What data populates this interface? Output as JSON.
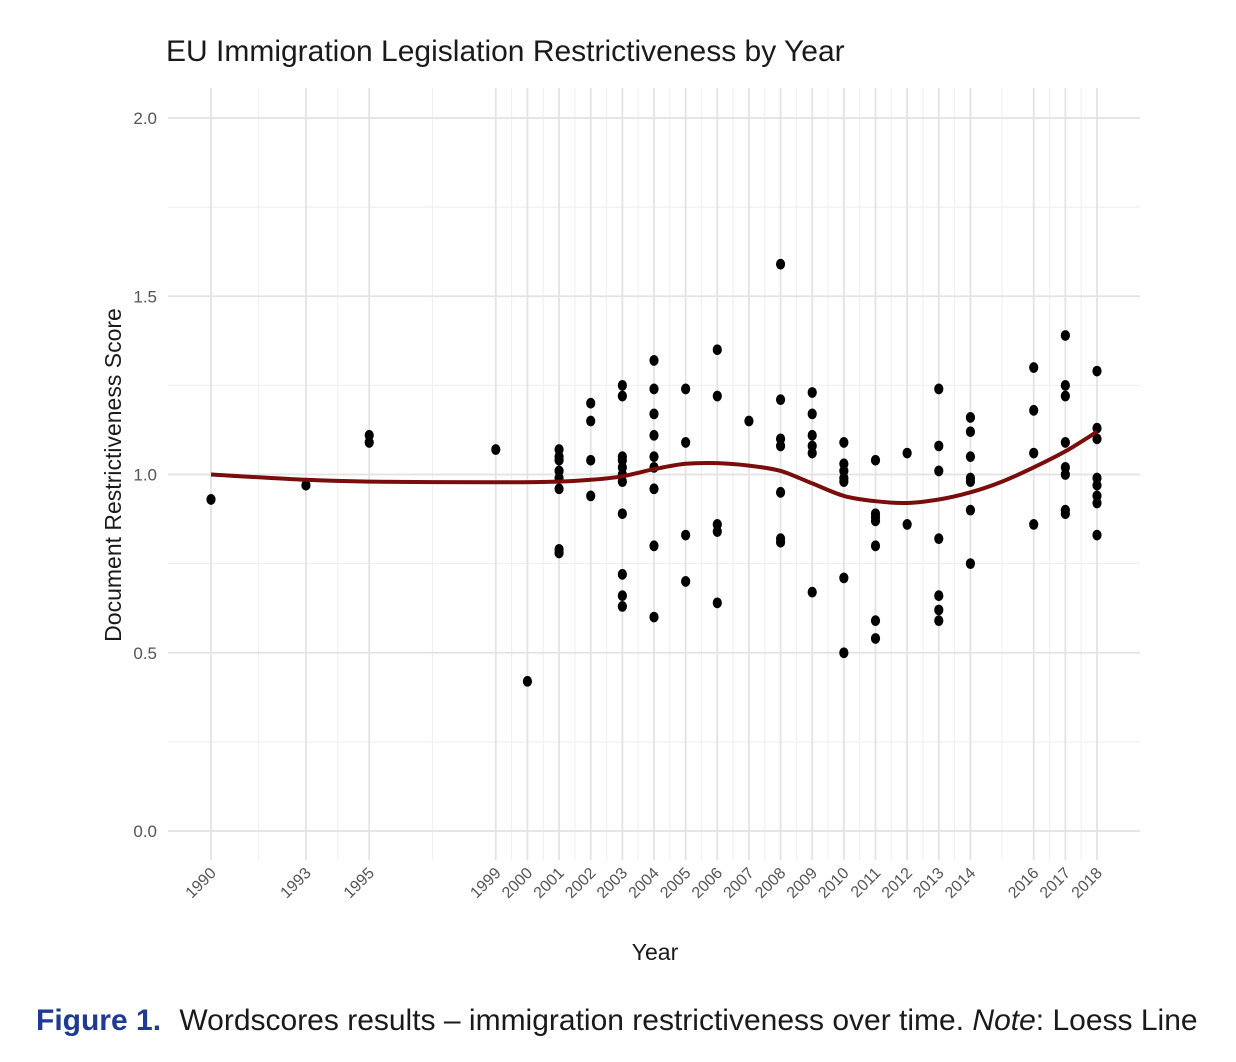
{
  "caption": {
    "figure_label": "Figure 1.",
    "text": "Wordscores results – immigration restrictiveness over time.",
    "note_label": "Note",
    "note_text": ": Loess Line"
  },
  "chart_data": {
    "type": "scatter",
    "title": "EU Immigration Legislation Restrictiveness by Year",
    "xlabel": "Year",
    "ylabel": "Document Restrictiveness Score",
    "xlim": [
      1990,
      2018
    ],
    "ylim": [
      0,
      2
    ],
    "yticks": [
      0.0,
      0.5,
      1.0,
      1.5,
      2.0
    ],
    "ytick_labels": [
      "0.0",
      "0.5",
      "1.0",
      "1.5",
      "2.0"
    ],
    "xticks": [
      1990,
      1993,
      1995,
      1999,
      2000,
      2001,
      2002,
      2003,
      2004,
      2005,
      2006,
      2007,
      2008,
      2009,
      2010,
      2011,
      2012,
      2013,
      2014,
      2016,
      2017,
      2018
    ],
    "xtick_labels": [
      "1990",
      "1993",
      "1995",
      "1999",
      "2000",
      "2001",
      "2002",
      "2003",
      "2004",
      "2005",
      "2006",
      "2007",
      "2008",
      "2009",
      "2010",
      "2011",
      "2012",
      "2013",
      "2014",
      "2016",
      "2017",
      "2018"
    ],
    "grid": true,
    "point_color": "#000000",
    "loess_color": "#7a0c0c",
    "points": [
      [
        1990,
        0.93
      ],
      [
        1993,
        0.97
      ],
      [
        1995,
        1.11
      ],
      [
        1995,
        1.09
      ],
      [
        1999,
        1.07
      ],
      [
        2000,
        0.42
      ],
      [
        2001,
        1.07
      ],
      [
        2001,
        1.05
      ],
      [
        2001,
        1.04
      ],
      [
        2001,
        1.01
      ],
      [
        2001,
        0.99
      ],
      [
        2001,
        0.96
      ],
      [
        2001,
        0.79
      ],
      [
        2001,
        0.78
      ],
      [
        2002,
        1.2
      ],
      [
        2002,
        1.15
      ],
      [
        2002,
        1.04
      ],
      [
        2002,
        0.94
      ],
      [
        2003,
        1.25
      ],
      [
        2003,
        1.22
      ],
      [
        2003,
        1.05
      ],
      [
        2003,
        1.04
      ],
      [
        2003,
        1.02
      ],
      [
        2003,
        1.0
      ],
      [
        2003,
        0.98
      ],
      [
        2003,
        0.89
      ],
      [
        2003,
        0.72
      ],
      [
        2003,
        0.66
      ],
      [
        2003,
        0.63
      ],
      [
        2004,
        1.32
      ],
      [
        2004,
        1.24
      ],
      [
        2004,
        1.17
      ],
      [
        2004,
        1.11
      ],
      [
        2004,
        1.05
      ],
      [
        2004,
        1.02
      ],
      [
        2004,
        0.96
      ],
      [
        2004,
        0.8
      ],
      [
        2004,
        0.6
      ],
      [
        2005,
        1.24
      ],
      [
        2005,
        1.09
      ],
      [
        2005,
        0.83
      ],
      [
        2005,
        0.7
      ],
      [
        2006,
        1.35
      ],
      [
        2006,
        1.22
      ],
      [
        2006,
        0.86
      ],
      [
        2006,
        0.84
      ],
      [
        2006,
        0.64
      ],
      [
        2007,
        1.15
      ],
      [
        2008,
        1.59
      ],
      [
        2008,
        1.21
      ],
      [
        2008,
        1.1
      ],
      [
        2008,
        1.08
      ],
      [
        2008,
        0.95
      ],
      [
        2008,
        0.82
      ],
      [
        2008,
        0.81
      ],
      [
        2009,
        1.23
      ],
      [
        2009,
        1.17
      ],
      [
        2009,
        1.11
      ],
      [
        2009,
        1.08
      ],
      [
        2009,
        1.06
      ],
      [
        2009,
        0.67
      ],
      [
        2010,
        1.09
      ],
      [
        2010,
        1.03
      ],
      [
        2010,
        1.01
      ],
      [
        2010,
        0.99
      ],
      [
        2010,
        0.98
      ],
      [
        2010,
        0.71
      ],
      [
        2010,
        0.5
      ],
      [
        2011,
        1.04
      ],
      [
        2011,
        0.89
      ],
      [
        2011,
        0.88
      ],
      [
        2011,
        0.87
      ],
      [
        2011,
        0.8
      ],
      [
        2011,
        0.59
      ],
      [
        2011,
        0.54
      ],
      [
        2012,
        1.06
      ],
      [
        2012,
        0.86
      ],
      [
        2013,
        1.24
      ],
      [
        2013,
        1.08
      ],
      [
        2013,
        1.01
      ],
      [
        2013,
        0.82
      ],
      [
        2013,
        0.66
      ],
      [
        2013,
        0.62
      ],
      [
        2013,
        0.59
      ],
      [
        2014,
        1.16
      ],
      [
        2014,
        1.12
      ],
      [
        2014,
        1.05
      ],
      [
        2014,
        0.99
      ],
      [
        2014,
        0.98
      ],
      [
        2014,
        0.9
      ],
      [
        2014,
        0.75
      ],
      [
        2016,
        1.3
      ],
      [
        2016,
        1.18
      ],
      [
        2016,
        1.06
      ],
      [
        2016,
        0.86
      ],
      [
        2017,
        1.39
      ],
      [
        2017,
        1.25
      ],
      [
        2017,
        1.22
      ],
      [
        2017,
        1.09
      ],
      [
        2017,
        1.02
      ],
      [
        2017,
        1.0
      ],
      [
        2017,
        0.9
      ],
      [
        2017,
        0.89
      ],
      [
        2018,
        1.29
      ],
      [
        2018,
        1.13
      ],
      [
        2018,
        1.1
      ],
      [
        2018,
        0.99
      ],
      [
        2018,
        0.97
      ],
      [
        2018,
        0.94
      ],
      [
        2018,
        0.92
      ],
      [
        2018,
        0.83
      ]
    ],
    "loess": [
      [
        1990,
        1.0
      ],
      [
        1993,
        0.985
      ],
      [
        1995,
        0.98
      ],
      [
        1999,
        0.978
      ],
      [
        2001,
        0.98
      ],
      [
        2002,
        0.985
      ],
      [
        2003,
        0.995
      ],
      [
        2004,
        1.015
      ],
      [
        2005,
        1.03
      ],
      [
        2006,
        1.032
      ],
      [
        2007,
        1.025
      ],
      [
        2008,
        1.01
      ],
      [
        2009,
        0.975
      ],
      [
        2010,
        0.94
      ],
      [
        2011,
        0.925
      ],
      [
        2012,
        0.92
      ],
      [
        2013,
        0.93
      ],
      [
        2014,
        0.95
      ],
      [
        2015,
        0.98
      ],
      [
        2016,
        1.02
      ],
      [
        2017,
        1.065
      ],
      [
        2018,
        1.12
      ]
    ]
  }
}
